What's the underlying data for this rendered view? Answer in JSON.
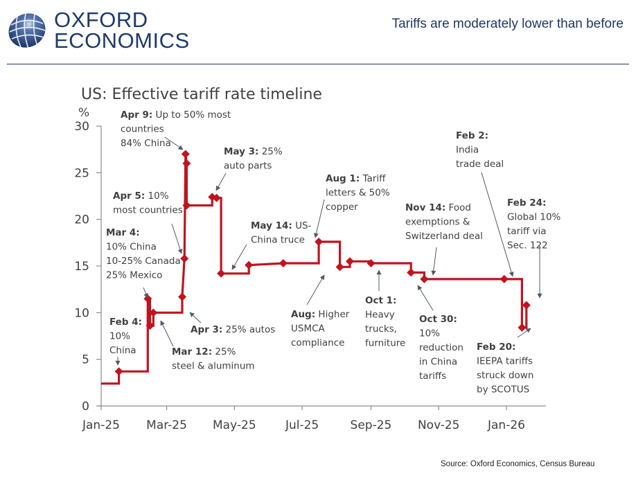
{
  "header": {
    "logo_line1": "OXFORD",
    "logo_line2": "ECONOMICS",
    "logo_icon": "globe-icon",
    "headline": "Tariffs are moderately lower than before"
  },
  "footer": {
    "source": "Source: Oxford Economics, Census Bureau"
  },
  "colors": {
    "brand_navy": "#1f3864",
    "series_red": "#c0141f",
    "text_gray": "#404040",
    "axis_gray": "#8c8c8c",
    "arrow_gray": "#505a66"
  },
  "chart_data": {
    "type": "line",
    "title": "US: Effective tariff rate timeline",
    "ylabel": "%",
    "xlabel": "",
    "ylim": [
      0,
      30
    ],
    "yticks": [
      0,
      5,
      10,
      15,
      20,
      25,
      30
    ],
    "xrange_days": [
      0,
      402
    ],
    "xticks": [
      {
        "day": 0,
        "label": "Jan-25"
      },
      {
        "day": 59,
        "label": "Mar-25"
      },
      {
        "day": 120,
        "label": "May-25"
      },
      {
        "day": 181,
        "label": "Jul-25"
      },
      {
        "day": 243,
        "label": "Sep-25"
      },
      {
        "day": 304,
        "label": "Nov-25"
      },
      {
        "day": 365,
        "label": "Jan-26"
      }
    ],
    "grid": false,
    "legend": "none",
    "series": [
      {
        "name": "Effective tariff rate",
        "points": [
          [
            0,
            2.4
          ],
          [
            16,
            2.4
          ],
          [
            16,
            3.7
          ],
          [
            42,
            3.7
          ],
          [
            42,
            11.5
          ],
          [
            44,
            11.5
          ],
          [
            44,
            8.6
          ],
          [
            47,
            8.6
          ],
          [
            47,
            10.0
          ],
          [
            73,
            10.0
          ],
          [
            73,
            11.7
          ],
          [
            75,
            15.8
          ],
          [
            76,
            27.0
          ],
          [
            77,
            26.0
          ],
          [
            77,
            21.5
          ],
          [
            100,
            21.5
          ],
          [
            100,
            22.4
          ],
          [
            104,
            22.3
          ],
          [
            108,
            22.3
          ],
          [
            108,
            14.2
          ],
          [
            133,
            14.2
          ],
          [
            133,
            15.1
          ],
          [
            164,
            15.3
          ],
          [
            196,
            15.3
          ],
          [
            196,
            17.6
          ],
          [
            215,
            17.6
          ],
          [
            215,
            14.9
          ],
          [
            224,
            14.9
          ],
          [
            224,
            15.5
          ],
          [
            243,
            15.5
          ],
          [
            243,
            15.3
          ],
          [
            279,
            15.3
          ],
          [
            279,
            14.3
          ],
          [
            291,
            14.3
          ],
          [
            291,
            13.6
          ],
          [
            373,
            13.6
          ],
          [
            379,
            13.6
          ],
          [
            379,
            8.4
          ],
          [
            383,
            8.4
          ],
          [
            383,
            10.8
          ]
        ],
        "markers": [
          [
            0,
            2.4,
            false
          ],
          [
            16,
            3.7,
            true
          ],
          [
            42,
            11.5,
            true
          ],
          [
            44,
            8.6,
            true
          ],
          [
            47,
            10.0,
            true
          ],
          [
            73,
            11.7,
            true
          ],
          [
            75,
            15.8,
            true
          ],
          [
            76,
            27.0,
            true
          ],
          [
            77,
            26.0,
            true
          ],
          [
            77,
            21.5,
            true
          ],
          [
            100,
            22.4,
            true
          ],
          [
            104,
            22.3,
            true
          ],
          [
            108,
            14.2,
            true
          ],
          [
            133,
            15.1,
            true
          ],
          [
            164,
            15.3,
            true
          ],
          [
            196,
            17.6,
            true
          ],
          [
            215,
            14.9,
            true
          ],
          [
            224,
            15.5,
            true
          ],
          [
            243,
            15.3,
            true
          ],
          [
            279,
            14.3,
            true
          ],
          [
            291,
            13.6,
            true
          ],
          [
            363,
            13.6,
            true
          ],
          [
            379,
            8.4,
            true
          ],
          [
            383,
            10.8,
            true
          ]
        ]
      }
    ],
    "annotations": [
      {
        "bold": "Apr 9:",
        "text": [
          "Up to 50% most",
          "countries",
          "84% China"
        ]
      },
      {
        "bold": "May 3:",
        "text": [
          "25%",
          "auto parts"
        ]
      },
      {
        "bold": "Apr 5:",
        "text": [
          "10%",
          "most countries"
        ]
      },
      {
        "bold": "Mar 4:",
        "text": [
          "",
          "10% China",
          "10-25% Canada",
          "25% Mexico"
        ]
      },
      {
        "bold": "May 14:",
        "text": [
          "US-",
          "China truce"
        ]
      },
      {
        "bold": "Aug 1:",
        "text": [
          "Tariff",
          "letters & 50%",
          "copper"
        ]
      },
      {
        "bold": "Feb 4:",
        "text": [
          "",
          "10%",
          "China"
        ]
      },
      {
        "bold": "Apr 3:",
        "text": [
          "25% autos"
        ]
      },
      {
        "bold": "Mar 12:",
        "text": [
          "25%",
          "steel & aluminum"
        ]
      },
      {
        "bold": "Aug:",
        "text": [
          "Higher",
          "USMCA",
          "compliance"
        ]
      },
      {
        "bold": "Oct 1:",
        "text": [
          "",
          "Heavy",
          "trucks,",
          "furniture"
        ]
      },
      {
        "bold": "Oct 30:",
        "text": [
          "",
          "10%",
          "reduction",
          "in China",
          "tariffs"
        ]
      },
      {
        "bold": "Nov 14:",
        "text": [
          "Food",
          "exemptions &",
          "Switzerland deal"
        ]
      },
      {
        "bold": "Feb 2:",
        "text": [
          "",
          "India",
          "trade deal"
        ]
      },
      {
        "bold": "Feb 24:",
        "text": [
          "",
          "Global 10%",
          "tariff via",
          "Sec. 122"
        ]
      },
      {
        "bold": "Feb 20:",
        "text": [
          "",
          "IEEPA tariffs",
          "struck down",
          "by SCOTUS"
        ]
      }
    ]
  }
}
